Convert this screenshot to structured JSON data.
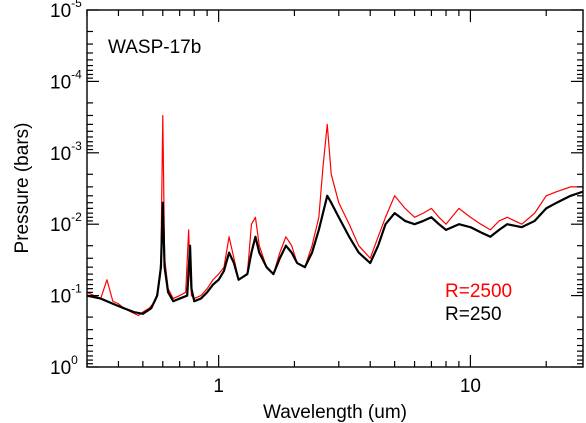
{
  "chart_data": {
    "type": "line",
    "title": "",
    "annotation": "WASP-17b",
    "xlabel": "Wavelength (um)",
    "ylabel": "Pressure (bars)",
    "x_scale": "log",
    "y_scale": "log",
    "y_inverted": true,
    "xlim": [
      0.3,
      28
    ],
    "ylim": [
      1,
      1e-05
    ],
    "x_ticks": [
      {
        "value": 1,
        "label": "1"
      },
      {
        "value": 10,
        "label": "10"
      }
    ],
    "y_ticks": [
      {
        "value": 1e-05,
        "base": "10",
        "exp": "-5"
      },
      {
        "value": 0.0001,
        "base": "10",
        "exp": "-4"
      },
      {
        "value": 0.001,
        "base": "10",
        "exp": "-3"
      },
      {
        "value": 0.01,
        "base": "10",
        "exp": "-2"
      },
      {
        "value": 0.1,
        "base": "10",
        "exp": "-1"
      },
      {
        "value": 1,
        "base": "10",
        "exp": "0"
      }
    ],
    "legend_placement": "bottom-right",
    "series": [
      {
        "name": "R=2500",
        "color": "#ff0000",
        "x": [
          0.3,
          0.32,
          0.34,
          0.36,
          0.38,
          0.4,
          0.42,
          0.45,
          0.48,
          0.5,
          0.53,
          0.56,
          0.58,
          0.59,
          0.6,
          0.61,
          0.63,
          0.66,
          0.7,
          0.74,
          0.76,
          0.77,
          0.78,
          0.8,
          0.85,
          0.9,
          0.95,
          1.0,
          1.05,
          1.1,
          1.15,
          1.2,
          1.3,
          1.35,
          1.4,
          1.45,
          1.55,
          1.65,
          1.75,
          1.85,
          1.95,
          2.05,
          2.2,
          2.35,
          2.5,
          2.6,
          2.7,
          2.8,
          3.0,
          3.3,
          3.6,
          4.0,
          4.3,
          4.6,
          5.0,
          5.5,
          6.0,
          6.5,
          7.0,
          7.5,
          8.0,
          9.0,
          10.0,
          11.0,
          12.0,
          13.0,
          14.0,
          16.0,
          18.0,
          20.0,
          22.0,
          25.0,
          28.0
        ],
        "y": [
          0.09,
          0.1,
          0.11,
          0.06,
          0.12,
          0.13,
          0.15,
          0.17,
          0.19,
          0.17,
          0.15,
          0.12,
          0.07,
          0.03,
          0.0003,
          0.03,
          0.08,
          0.11,
          0.1,
          0.09,
          0.012,
          0.05,
          0.1,
          0.11,
          0.1,
          0.08,
          0.06,
          0.05,
          0.04,
          0.015,
          0.03,
          0.06,
          0.05,
          0.01,
          0.008,
          0.02,
          0.04,
          0.05,
          0.025,
          0.015,
          0.02,
          0.035,
          0.04,
          0.02,
          0.008,
          0.0015,
          0.0004,
          0.002,
          0.005,
          0.01,
          0.02,
          0.03,
          0.015,
          0.008,
          0.004,
          0.006,
          0.008,
          0.007,
          0.006,
          0.008,
          0.01,
          0.006,
          0.008,
          0.01,
          0.012,
          0.009,
          0.008,
          0.01,
          0.007,
          0.004,
          0.0035,
          0.003,
          0.003
        ]
      },
      {
        "name": "R=250",
        "color": "#000000",
        "x": [
          0.3,
          0.34,
          0.38,
          0.42,
          0.46,
          0.5,
          0.54,
          0.57,
          0.59,
          0.6,
          0.61,
          0.63,
          0.66,
          0.7,
          0.75,
          0.77,
          0.78,
          0.8,
          0.85,
          0.9,
          0.95,
          1.0,
          1.05,
          1.1,
          1.15,
          1.2,
          1.3,
          1.35,
          1.4,
          1.45,
          1.55,
          1.65,
          1.75,
          1.85,
          1.95,
          2.05,
          2.2,
          2.35,
          2.5,
          2.7,
          2.8,
          3.0,
          3.3,
          3.6,
          4.0,
          4.3,
          4.6,
          5.0,
          5.5,
          6.0,
          6.5,
          7.0,
          7.5,
          8.0,
          9.0,
          10.0,
          11.0,
          12.0,
          13.0,
          14.0,
          16.0,
          18.0,
          20.0,
          22.0,
          25.0,
          28.0
        ],
        "y": [
          0.1,
          0.11,
          0.13,
          0.15,
          0.17,
          0.18,
          0.15,
          0.1,
          0.04,
          0.005,
          0.04,
          0.09,
          0.12,
          0.11,
          0.1,
          0.02,
          0.08,
          0.12,
          0.11,
          0.09,
          0.07,
          0.06,
          0.045,
          0.025,
          0.035,
          0.06,
          0.05,
          0.025,
          0.015,
          0.025,
          0.04,
          0.05,
          0.03,
          0.02,
          0.025,
          0.035,
          0.04,
          0.025,
          0.012,
          0.004,
          0.005,
          0.008,
          0.015,
          0.025,
          0.035,
          0.02,
          0.01,
          0.007,
          0.009,
          0.01,
          0.009,
          0.008,
          0.01,
          0.012,
          0.01,
          0.011,
          0.013,
          0.015,
          0.012,
          0.01,
          0.011,
          0.009,
          0.006,
          0.005,
          0.004,
          0.0035
        ]
      }
    ]
  }
}
